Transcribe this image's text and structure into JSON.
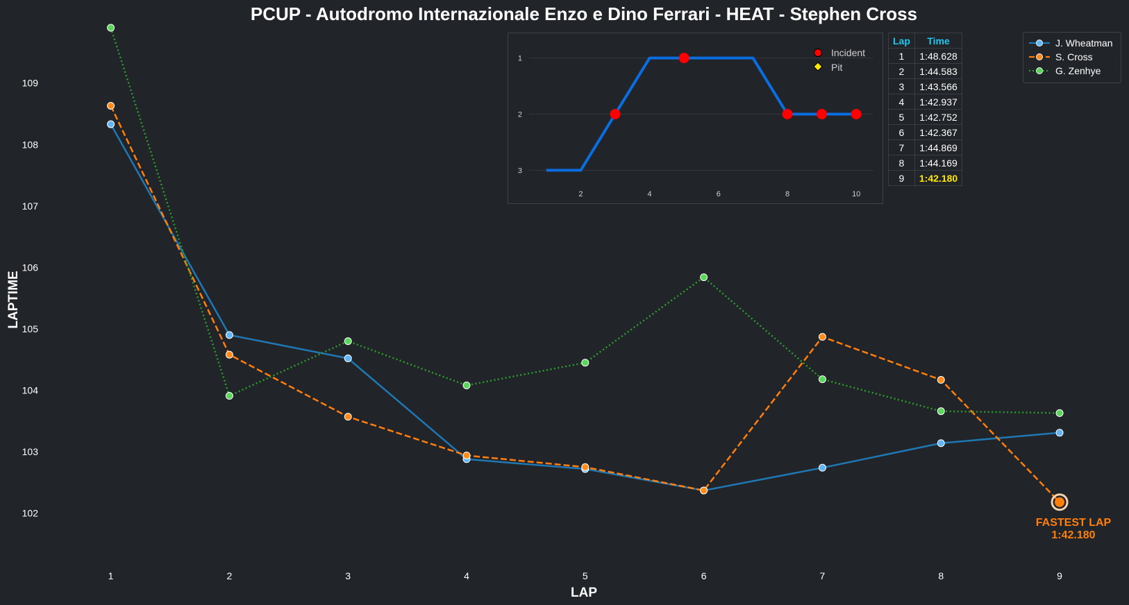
{
  "chart_data": {
    "type": "line",
    "title": "PCUP - Autodromo Internazionale Enzo e Dino Ferrari - HEAT - Stephen Cross",
    "xlabel": "LAP",
    "ylabel": "LAPTIME",
    "x": [
      1,
      2,
      3,
      4,
      5,
      6,
      7,
      8,
      9
    ],
    "xlim": [
      0.3,
      9.55
    ],
    "ylim": [
      101.15,
      109.9
    ],
    "yticks": [
      102,
      103,
      104,
      105,
      106,
      107,
      108,
      109
    ],
    "grid": false,
    "legend_position": "top-right",
    "series": [
      {
        "name": "J. Wheatman",
        "color": "#1f77b4",
        "marker_color": "#64b5f6",
        "line_style": "solid",
        "values": [
          108.33,
          104.9,
          104.52,
          102.88,
          102.72,
          102.37,
          102.74,
          103.14,
          103.31
        ]
      },
      {
        "name": "S. Cross",
        "color": "#ff7f0e",
        "marker_color": "#ff8c1a",
        "line_style": "dashed",
        "values": [
          108.63,
          104.58,
          103.57,
          102.94,
          102.75,
          102.37,
          104.87,
          104.17,
          102.18
        ]
      },
      {
        "name": "G. Zenhye",
        "color": "#2ca02c",
        "marker_color": "#5ad65a",
        "line_style": "dotted",
        "values": [
          109.9,
          103.91,
          104.8,
          104.08,
          104.45,
          105.84,
          104.18,
          103.66,
          103.63
        ]
      }
    ],
    "annotation": {
      "title": "FASTEST LAP",
      "value": "1:42.180",
      "x": 9,
      "y": 102.18,
      "color": "#ff7f0e"
    },
    "inset": {
      "type": "line",
      "x": [
        1,
        2,
        3,
        4,
        5,
        6,
        7,
        8,
        9,
        10
      ],
      "values": [
        3,
        3,
        2,
        1,
        1,
        1,
        1,
        2,
        2,
        2
      ],
      "xlim": [
        0.5,
        10.5
      ],
      "ylim": [
        3.18,
        0.82
      ],
      "xticks": [
        2,
        4,
        6,
        8,
        10
      ],
      "yticks": [
        1,
        2,
        3
      ],
      "line_color": "#0a6ee0",
      "incidents": [
        3,
        5,
        8,
        9,
        10
      ],
      "pits": [],
      "legend": [
        {
          "label": "Incident",
          "color": "#ff0000"
        },
        {
          "label": "Pit",
          "color": "#ffe600"
        }
      ]
    }
  },
  "lap_table": {
    "headers": [
      "Lap",
      "Time"
    ],
    "rows": [
      {
        "lap": "1",
        "time": "1:48.628"
      },
      {
        "lap": "2",
        "time": "1:44.583"
      },
      {
        "lap": "3",
        "time": "1:43.566"
      },
      {
        "lap": "4",
        "time": "1:42.937"
      },
      {
        "lap": "5",
        "time": "1:42.752"
      },
      {
        "lap": "6",
        "time": "1:42.367"
      },
      {
        "lap": "7",
        "time": "1:44.869"
      },
      {
        "lap": "8",
        "time": "1:44.169"
      },
      {
        "lap": "9",
        "time": "1:42.180"
      }
    ],
    "fastest_lap": "9"
  }
}
